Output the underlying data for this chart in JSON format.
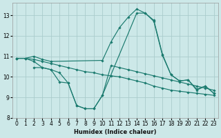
{
  "xlabel": "Humidex (Indice chaleur)",
  "xlim": [
    -0.5,
    23.5
  ],
  "ylim": [
    8,
    13.6
  ],
  "yticks": [
    8,
    9,
    10,
    11,
    12,
    13
  ],
  "xticks": [
    0,
    1,
    2,
    3,
    4,
    5,
    6,
    7,
    8,
    9,
    10,
    11,
    12,
    13,
    14,
    15,
    16,
    17,
    18,
    19,
    20,
    21,
    22,
    23
  ],
  "bg_color": "#cce8e8",
  "grid_color": "#aacccc",
  "line_color": "#1a7a6e",
  "lines": [
    {
      "x": [
        0,
        1,
        2,
        3,
        4,
        10,
        11,
        12,
        13,
        14,
        15,
        16,
        17,
        18,
        19,
        20,
        21,
        22,
        23
      ],
      "y": [
        10.9,
        10.9,
        11.0,
        10.85,
        10.75,
        10.8,
        11.7,
        12.4,
        12.9,
        13.3,
        13.1,
        12.75,
        11.1,
        10.1,
        9.8,
        9.85,
        9.4,
        9.55,
        9.2
      ]
    },
    {
      "x": [
        0,
        1,
        2,
        3,
        4,
        5,
        6,
        7,
        8,
        9,
        10,
        11,
        12,
        13,
        14,
        15,
        16,
        17,
        18,
        19,
        20,
        21,
        22,
        23
      ],
      "y": [
        10.9,
        10.9,
        10.85,
        10.75,
        10.65,
        10.55,
        10.45,
        10.35,
        10.25,
        10.2,
        10.1,
        10.05,
        10.0,
        9.9,
        9.8,
        9.7,
        9.55,
        9.45,
        9.35,
        9.3,
        9.25,
        9.2,
        9.15,
        9.1
      ]
    },
    {
      "x": [
        0,
        1,
        2,
        3,
        4,
        5,
        6,
        7,
        8,
        9,
        10,
        14,
        15,
        16,
        17,
        18,
        19,
        20,
        21,
        22,
        23
      ],
      "y": [
        10.9,
        10.9,
        10.75,
        10.45,
        10.35,
        9.75,
        9.7,
        8.6,
        8.45,
        8.45,
        9.1,
        13.1,
        13.1,
        12.7,
        11.05,
        10.1,
        9.8,
        9.85,
        9.35,
        9.55,
        9.2
      ]
    },
    {
      "x": [
        2,
        3,
        4,
        5,
        6,
        7,
        8,
        9,
        10,
        11,
        12,
        13,
        14,
        15,
        16,
        17,
        18,
        19,
        20,
        21,
        22,
        23
      ],
      "y": [
        10.45,
        10.45,
        10.35,
        10.2,
        9.7,
        8.6,
        8.45,
        8.45,
        9.1,
        10.55,
        10.45,
        10.35,
        10.25,
        10.15,
        10.05,
        9.95,
        9.85,
        9.75,
        9.65,
        9.55,
        9.45,
        9.35
      ]
    }
  ]
}
